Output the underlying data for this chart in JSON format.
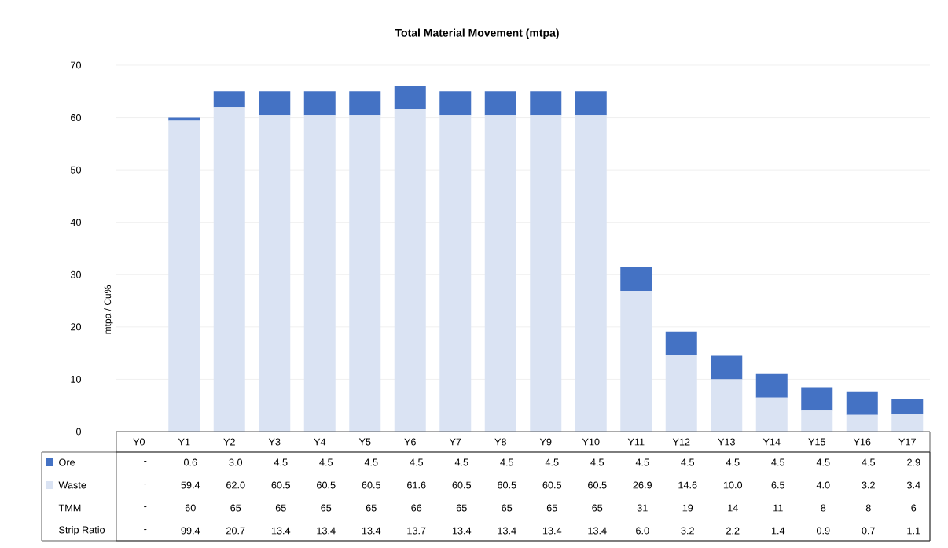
{
  "chart_data": {
    "type": "bar",
    "title": "Total Material Movement (mtpa)",
    "ylabel": "mtpa / Cu%",
    "stacked": true,
    "legend": "bottom",
    "grid": "y",
    "categories": [
      "Y0",
      "Y1",
      "Y2",
      "Y3",
      "Y4",
      "Y5",
      "Y6",
      "Y7",
      "Y8",
      "Y9",
      "Y10",
      "Y11",
      "Y12",
      "Y13",
      "Y14",
      "Y15",
      "Y16",
      "Y17"
    ],
    "ylim": [
      0,
      70
    ],
    "yticks": [
      0,
      10,
      20,
      30,
      40,
      50,
      60,
      70
    ],
    "series": [
      {
        "name": "Waste",
        "color": "#dae3f3",
        "values": [
          null,
          59.4,
          62.0,
          60.5,
          60.5,
          60.5,
          61.6,
          60.5,
          60.5,
          60.5,
          60.5,
          26.9,
          14.6,
          10.0,
          6.5,
          4.0,
          3.2,
          3.4
        ],
        "value_labels": [
          "-",
          "59.4",
          "62.0",
          "60.5",
          "60.5",
          "60.5",
          "61.6",
          "60.5",
          "60.5",
          "60.5",
          "60.5",
          "26.9",
          "14.6",
          "10.0",
          "6.5",
          "4.0",
          "3.2",
          "3.4"
        ]
      },
      {
        "name": "Ore",
        "color": "#4472c4",
        "values": [
          null,
          0.6,
          3.0,
          4.5,
          4.5,
          4.5,
          4.5,
          4.5,
          4.5,
          4.5,
          4.5,
          4.5,
          4.5,
          4.5,
          4.5,
          4.5,
          4.5,
          2.9
        ],
        "value_labels": [
          "-",
          "0.6",
          "3.0",
          "4.5",
          "4.5",
          "4.5",
          "4.5",
          "4.5",
          "4.5",
          "4.5",
          "4.5",
          "4.5",
          "4.5",
          "4.5",
          "4.5",
          "4.5",
          "4.5",
          "2.9"
        ]
      }
    ],
    "annotations": [
      "TMM",
      "-",
      "60",
      "65",
      "65",
      "65",
      "65",
      "66",
      "65",
      "65",
      "65",
      "65",
      "31",
      "19",
      "14",
      "11",
      "8",
      "8",
      "6",
      "Strip Ratio",
      "-",
      "99.4",
      "20.7",
      "13.4",
      "13.4",
      "13.4",
      "13.7",
      "13.4",
      "13.4",
      "13.4",
      "13.4",
      "6.0",
      "3.2",
      "2.2",
      "1.4",
      "0.9",
      "0.7",
      "1.1"
    ]
  }
}
